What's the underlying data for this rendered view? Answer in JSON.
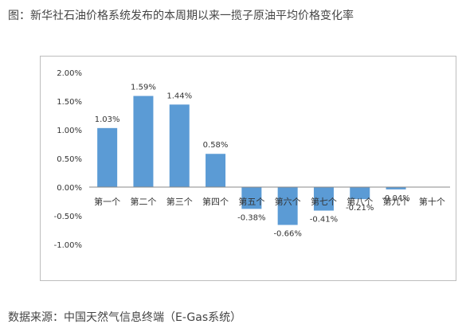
{
  "header": {
    "title": "图：新华社石油价格系统发布的本周期以来一揽子原油平均价格变化率"
  },
  "footer": {
    "source": "数据来源：中国天然气信息终端（E-Gas系统）"
  },
  "colors": {
    "bar": "#5b9bd5",
    "axis": "#888888",
    "text": "#333333"
  },
  "chart_data": {
    "type": "bar",
    "title": "",
    "xlabel": "",
    "ylabel": "",
    "categories": [
      "第一个",
      "第二个",
      "第三个",
      "第四个",
      "第五个",
      "第六个",
      "第七个",
      "第八个",
      "第九个",
      "第十个"
    ],
    "values": [
      1.03,
      1.59,
      1.44,
      0.58,
      -0.38,
      -0.66,
      -0.41,
      -0.21,
      -0.04,
      null
    ],
    "data_labels": [
      "1.03%",
      "1.59%",
      "1.44%",
      "0.58%",
      "-0.38%",
      "-0.66%",
      "-0.41%",
      "-0.21%",
      "-0.04%",
      ""
    ],
    "ylim": [
      -1.0,
      2.0
    ],
    "yticks": [
      2.0,
      1.5,
      1.0,
      0.5,
      0.0,
      -0.5,
      -1.0
    ],
    "ytick_labels": [
      "2.00%",
      "1.50%",
      "1.00%",
      "0.50%",
      "0.00%",
      "-0.50%",
      "-1.00%"
    ],
    "grid": false,
    "legend": "none"
  }
}
